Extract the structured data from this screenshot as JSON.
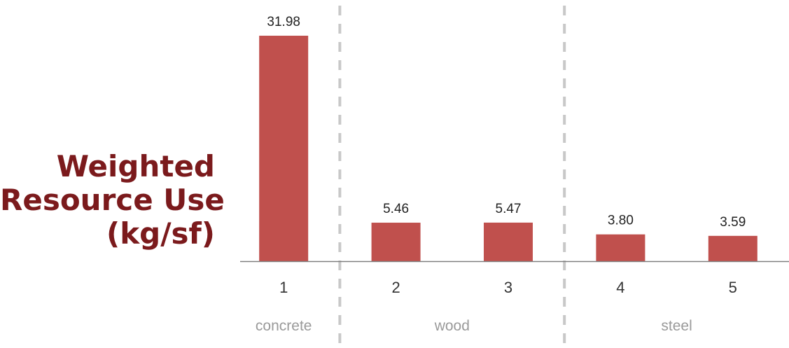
{
  "chart_data": {
    "type": "bar",
    "categories": [
      "1",
      "2",
      "3",
      "4",
      "5"
    ],
    "values": [
      31.98,
      5.46,
      5.47,
      3.8,
      3.59
    ],
    "value_labels": [
      "31.98",
      "5.46",
      "5.47",
      "3.80",
      "3.59"
    ],
    "groups": [
      {
        "label": "concrete",
        "categories": [
          "1"
        ]
      },
      {
        "label": "wood",
        "categories": [
          "2",
          "3"
        ]
      },
      {
        "label": "steel",
        "categories": [
          "4",
          "5"
        ]
      }
    ],
    "ylabel_lines": [
      "Weighted",
      "Resource Use",
      "(kg/sf)"
    ],
    "xlabel": "",
    "ylim": [
      0,
      31.98
    ],
    "grid": false,
    "group_separators": "dashed",
    "colors": {
      "bar": "#c0504d",
      "axis": "#7f7f7f",
      "separator": "#c8c8c8",
      "ylabel": "#7b1a1c",
      "group_label": "#9a9a9a"
    }
  }
}
